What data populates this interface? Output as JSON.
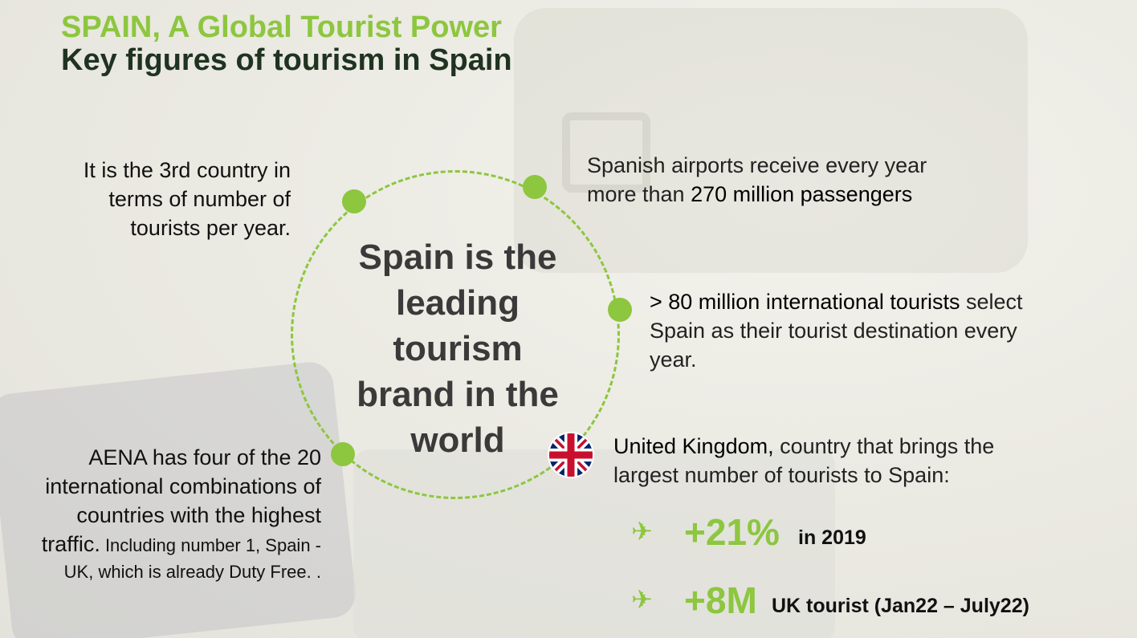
{
  "header": {
    "title": "SPAIN, A Global Tourist Power",
    "subtitle": "Key figures of tourism in Spain"
  },
  "center": {
    "line1": "Spain is the",
    "line2": "leading",
    "line3": "tourism",
    "line4": "brand in the",
    "line5": "world"
  },
  "facts": {
    "ranking": {
      "line1": "It is the 3rd country in",
      "line2": "terms of number of",
      "line3": "tourists per year."
    },
    "airports": {
      "line1": "Spanish airports receive every year",
      "line2_prefix": "more than ",
      "line2_value": "270 million passengers"
    },
    "international": {
      "highlight": "> 80 million international tourists",
      "line1_suffix": " select",
      "line2": "Spain as their tourist destination every",
      "line3": "year."
    },
    "aena": {
      "line1": "AENA has four of the 20",
      "line2": "international combinations of",
      "line3": "countries with the highest",
      "line4": "traffic.",
      "line4_small": " Including number 1, Spain -",
      "line5_small": "UK, which is already Duty Free. ."
    },
    "uk": {
      "country": "United Kingdom,",
      "line1_suffix": " country that brings the",
      "line2": "largest number of tourists to Spain:"
    }
  },
  "stats": [
    {
      "icon": "airplane-icon",
      "value": "+21%",
      "label": "in 2019"
    },
    {
      "icon": "airplane-icon",
      "value": "+8M",
      "label": "UK tourist (Jan22 – July22)"
    }
  ],
  "colors": {
    "accent": "#8dc63f",
    "dark_green": "#1f3320",
    "center_text": "#3a3a3a"
  }
}
